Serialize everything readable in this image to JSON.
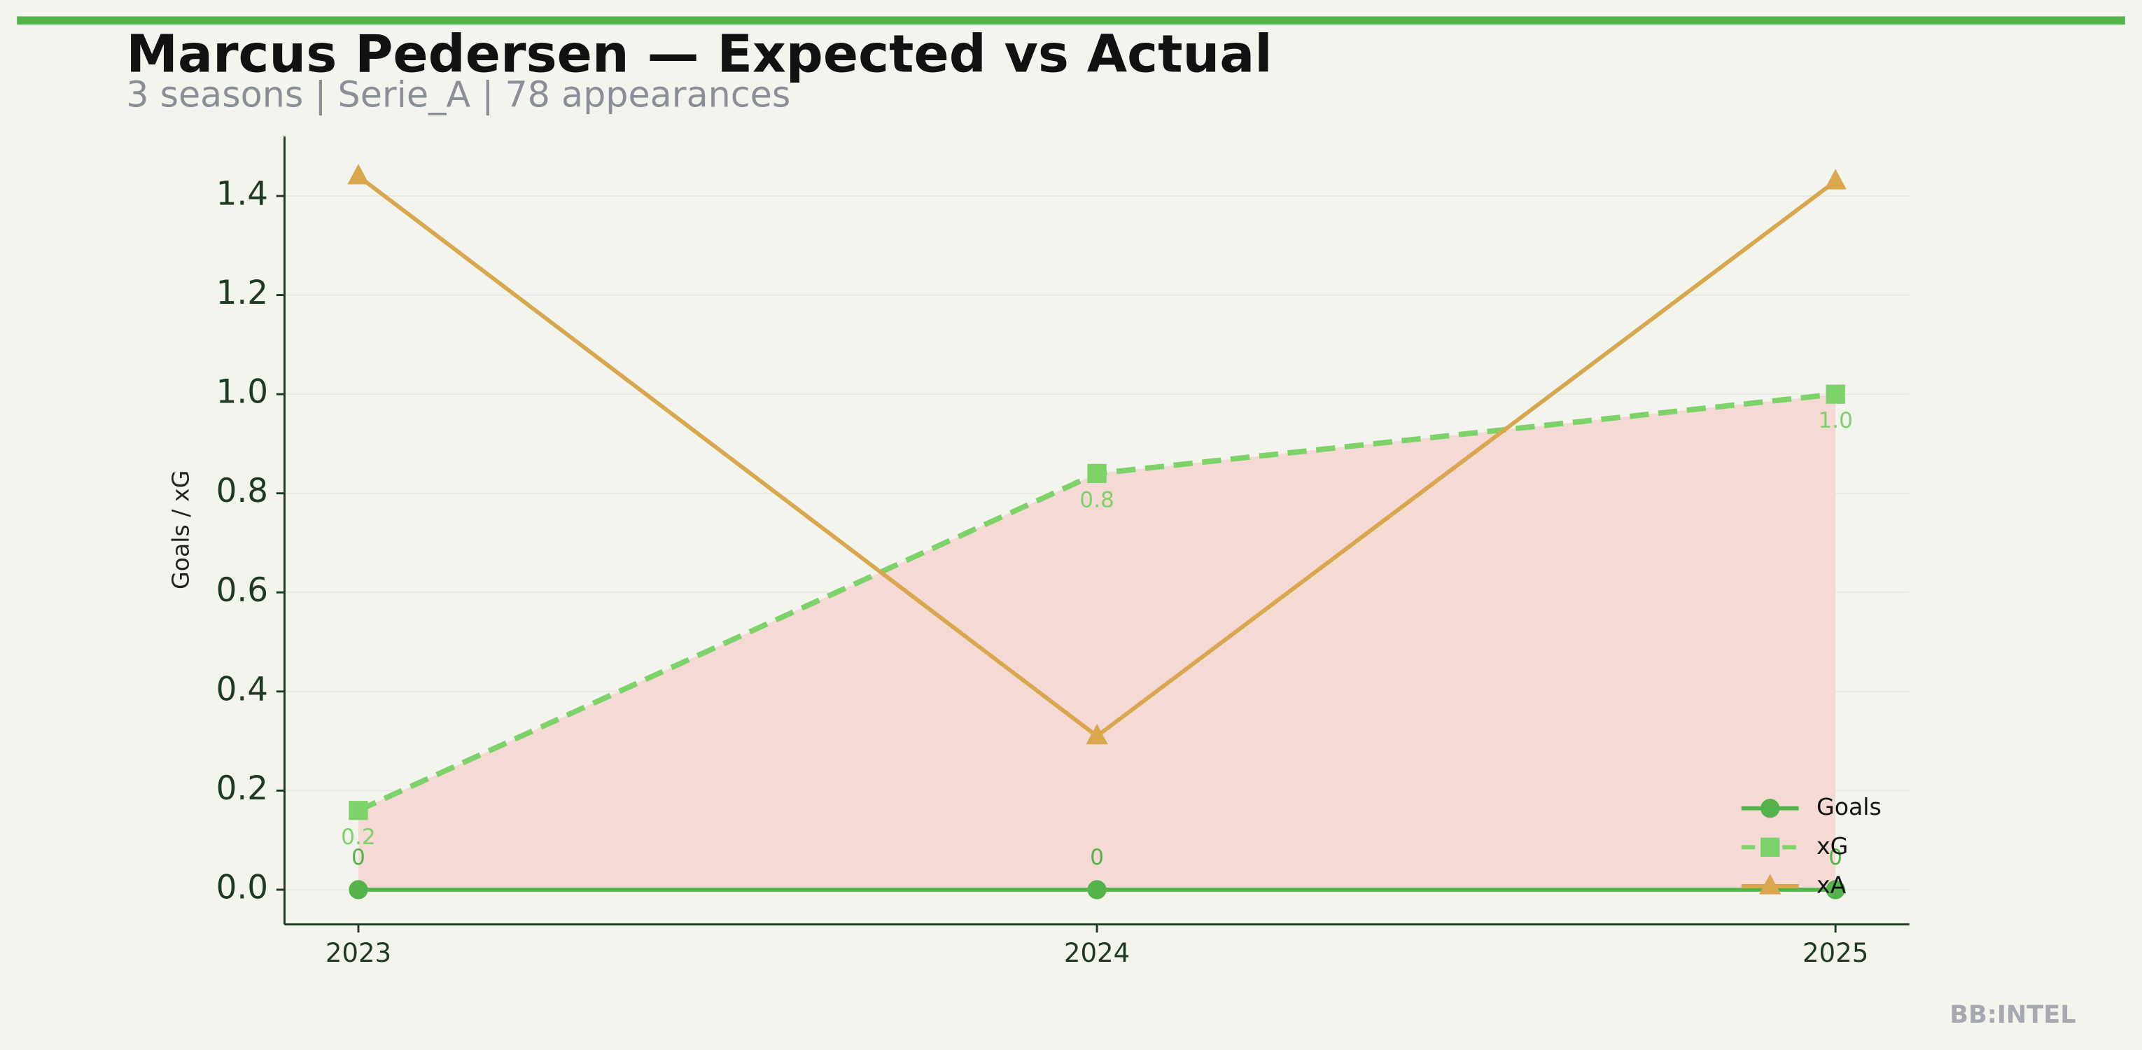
{
  "chart_data": {
    "type": "line",
    "title": "Marcus Pedersen — Expected vs Actual",
    "subtitle": "3 seasons | Serie_A | 78 appearances",
    "y_label": "Goals / xG",
    "watermark": "BB:INTEL",
    "x": [
      2023,
      2024,
      2025
    ],
    "xlim": [
      2022.9,
      2025.1
    ],
    "xticks": [
      2023,
      2024,
      2025
    ],
    "ylim": [
      -0.07,
      1.52
    ],
    "yticks": [
      {
        "value": 0,
        "label": "0.0"
      },
      0.2,
      0.4,
      0.6,
      0.8,
      {
        "value": 1,
        "label": "1.0"
      },
      1.2,
      1.4
    ],
    "grid": true,
    "legend": "lower right",
    "fill_between": {
      "from": 0,
      "to": 1,
      "color": "#f5d9d4"
    },
    "series": [
      {
        "name": "Goals",
        "color": "#55b34b",
        "marker": "circle",
        "dash": false,
        "values": [
          0,
          0,
          0
        ]
      },
      {
        "name": "xG",
        "color": "#7dd36a",
        "marker": "square",
        "dash": true,
        "values": [
          0.16,
          0.84,
          1.0
        ],
        "value_labels": [
          "0.2",
          "0.8",
          "1.0"
        ]
      },
      {
        "name": "xA",
        "color": "#d9a84e",
        "marker": "triangle",
        "dash": false,
        "values": [
          1.44,
          0.31,
          1.43
        ]
      }
    ]
  }
}
